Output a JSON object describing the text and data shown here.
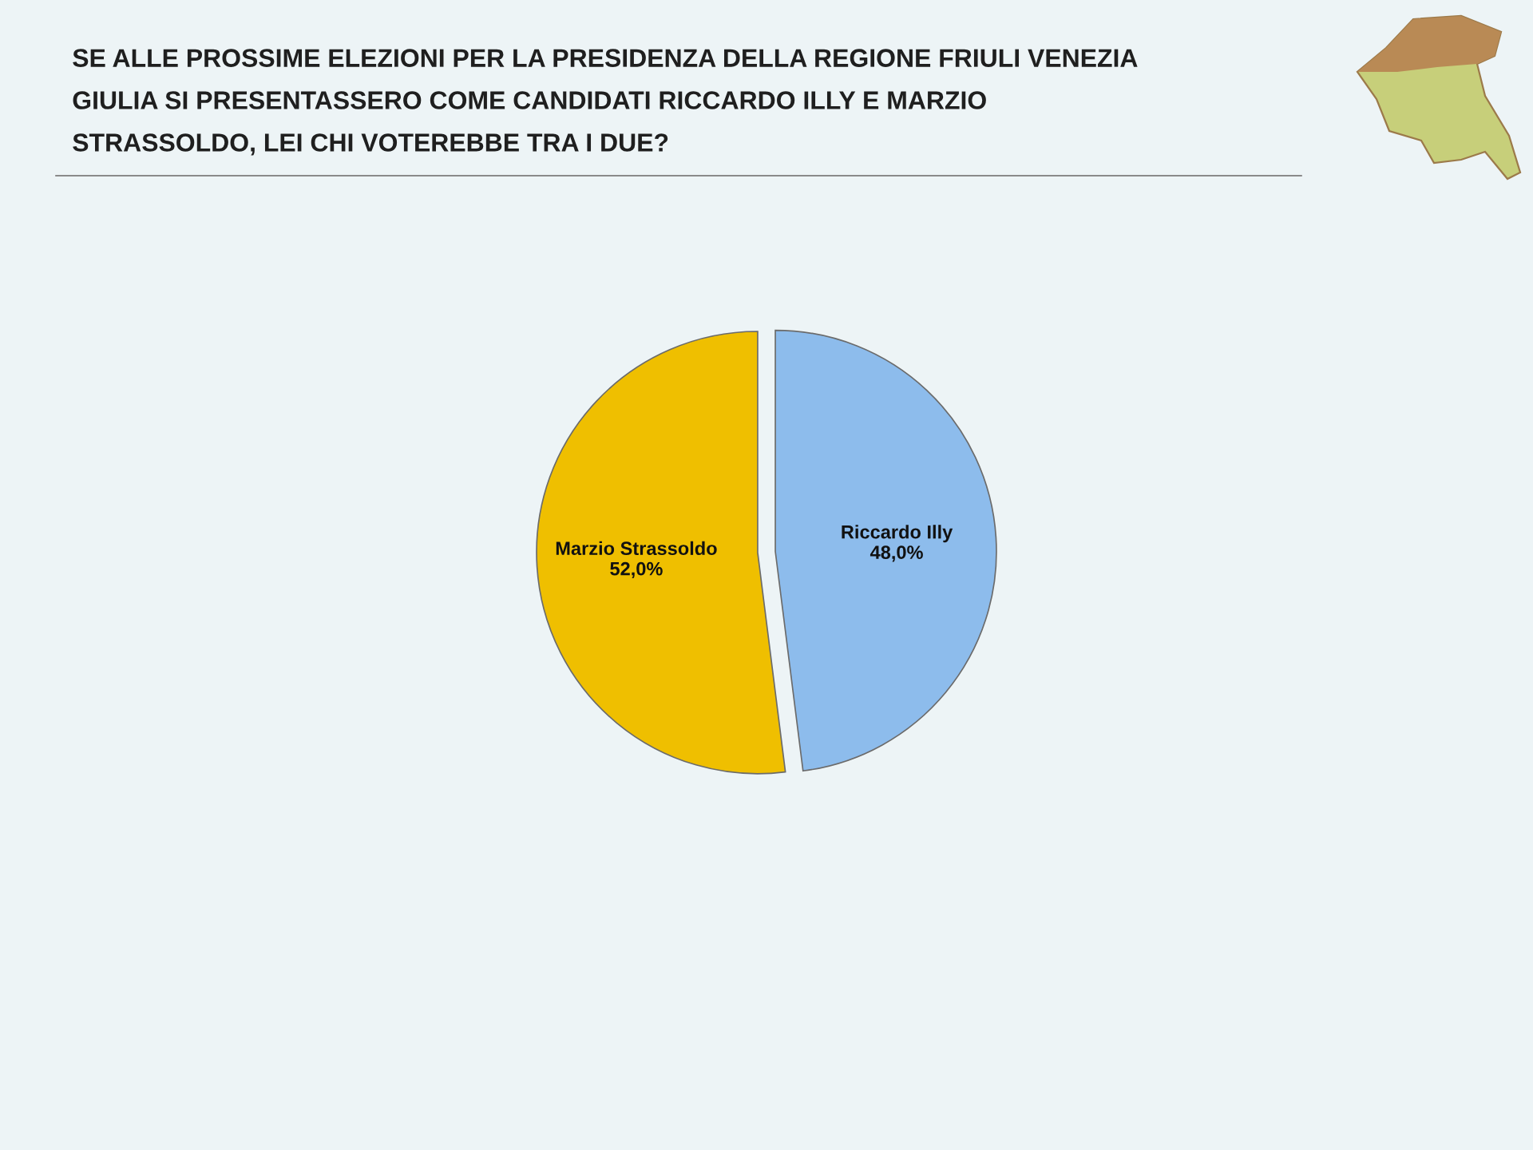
{
  "chart_data": {
    "type": "pie",
    "title": "SE ALLE PROSSIME ELEZIONI PER LA PRESIDENZA DELLA REGIONE FRIULI VENEZIA\nGIULIA SI PRESENTASSERO COME CANDIDATI RICCARDO ILLY E MARZIO\nSTRASSOLDO, LEI CHI VOTEREBBE TRA I DUE?",
    "categories": [
      "Marzio Strassoldo",
      "Riccardo Illy"
    ],
    "values": [
      52.0,
      48.0
    ],
    "value_labels": [
      "52,0%",
      "48,0%"
    ],
    "colors": [
      "#efbf00",
      "#8dbcec"
    ]
  }
}
